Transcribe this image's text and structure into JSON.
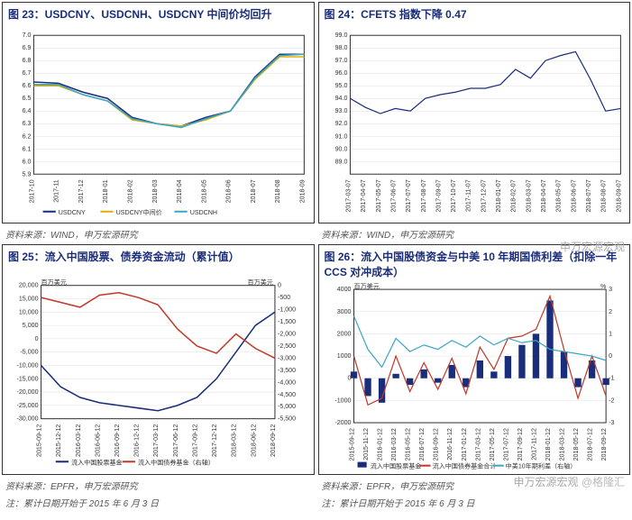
{
  "row1": {
    "left": {
      "title": "图 23：USDCNY、USDCNH、USDCNY 中间价均回升",
      "source": "资料来源：WIND，申万宏源研究",
      "chart": {
        "type": "line",
        "ylim": [
          5.9,
          7.0
        ],
        "yticks": [
          5.9,
          6.0,
          6.1,
          6.2,
          6.3,
          6.4,
          6.5,
          6.6,
          6.7,
          6.8,
          6.9,
          7.0
        ],
        "xticks": [
          "2017-10",
          "2017-11",
          "2017-12",
          "2018-01",
          "2018-02",
          "2018-03",
          "2018-04",
          "2018-05",
          "2018-06",
          "2018-07",
          "2018-08",
          "2018-09"
        ],
        "series": [
          {
            "name": "USDCNY",
            "color": "#1a2d7a",
            "data": [
              6.63,
              6.62,
              6.55,
              6.5,
              6.35,
              6.3,
              6.28,
              6.35,
              6.4,
              6.67,
              6.85,
              6.85
            ]
          },
          {
            "name": "USDCNY中间价",
            "color": "#e0b000",
            "data": [
              6.6,
              6.6,
              6.53,
              6.48,
              6.33,
              6.3,
              6.28,
              6.33,
              6.4,
              6.65,
              6.83,
              6.83
            ]
          },
          {
            "name": "USDCNH",
            "color": "#3aa6c4",
            "data": [
              6.61,
              6.61,
              6.53,
              6.48,
              6.34,
              6.3,
              6.27,
              6.34,
              6.4,
              6.66,
              6.84,
              6.85
            ]
          }
        ],
        "grid_color": "#e0e0e0",
        "line_width": 1.5
      }
    },
    "right": {
      "title": "图 24：CFETS 指数下降 0.47",
      "source": "资料来源：WIND，申万宏源研究",
      "chart": {
        "type": "line",
        "ylim": [
          88.0,
          99.0
        ],
        "yticks": [
          89.0,
          90.0,
          91.0,
          92.0,
          93.0,
          94.0,
          95.0,
          96.0,
          97.0,
          98.0,
          99.0
        ],
        "xticks": [
          "2017-03-07",
          "2017-04-07",
          "2017-05-07",
          "2017-06-07",
          "2017-07-07",
          "2017-08-07",
          "2017-09-07",
          "2017-10-07",
          "2017-11-07",
          "2017-12-07",
          "2018-01-07",
          "2018-02-07",
          "2018-03-07",
          "2018-04-07",
          "2018-05-07",
          "2018-06-07",
          "2018-07-07",
          "2018-08-07",
          "2018-09-07"
        ],
        "series": [
          {
            "name": "CFETS",
            "color": "#1a2d7a",
            "data": [
              94.0,
              93.3,
              92.8,
              93.2,
              93.0,
              94.0,
              94.3,
              94.5,
              94.8,
              94.8,
              95.1,
              96.3,
              95.6,
              97.0,
              97.4,
              97.7,
              95.5,
              93.0,
              93.2
            ]
          }
        ],
        "grid_color": "#e0e0e0",
        "line_width": 1.2
      }
    }
  },
  "row2": {
    "left": {
      "title": "图 25：流入中国股票、债券资金流动（累计值）",
      "source": "资料来源：EPFR，申万宏源研究",
      "note": "注：累计日期开始于 2015 年 6 月 3 日",
      "chart": {
        "type": "dual-line",
        "ylim_l": [
          -30000,
          20000
        ],
        "yticks_l": [
          -30000,
          -25000,
          -20000,
          -15000,
          -10000,
          -5000,
          0,
          5000,
          10000,
          15000,
          20000
        ],
        "ylim_r": [
          -5500,
          0
        ],
        "yticks_r": [
          -5500,
          -5000,
          -4500,
          -4000,
          -3500,
          -3000,
          -2500,
          -2000,
          -1500,
          -1000,
          -500,
          0
        ],
        "ylabel_l": "百万美元",
        "ylabel_r": "百万美元",
        "xticks": [
          "2015-09-12",
          "2015-12-12",
          "2016-03-12",
          "2016-06-12",
          "2016-09-12",
          "2016-12-12",
          "2017-03-12",
          "2017-06-12",
          "2017-09-12",
          "2017-12-12",
          "2018-03-12",
          "2018-06-12",
          "2018-09-12"
        ],
        "series": [
          {
            "name": "流入中国股票基金",
            "color": "#1a2d7a",
            "axis": "left",
            "data": [
              -10000,
              -18000,
              -22000,
              -24000,
              -25000,
              -26000,
              -27000,
              -25000,
              -22000,
              -15000,
              -5000,
              5000,
              10000
            ]
          },
          {
            "name": "流入中国债券基金（右轴）",
            "color": "#c0392b",
            "axis": "right",
            "data": [
              -500,
              -700,
              -900,
              -400,
              -300,
              -500,
              -800,
              -1800,
              -2500,
              -2800,
              -2000,
              -2600,
              -3000
            ]
          }
        ],
        "grid_color": "#e0e0e0",
        "line_width": 1.5
      }
    },
    "right": {
      "title": "图 26：流入中国股债资金与中美 10 年期国债利差（扣除一年 CCS 对冲成本）",
      "source": "资料来源：EPFR，申万宏源研究",
      "note": "注：累计日期开始于 2015 年 6 月 3 日",
      "chart": {
        "type": "bar-dual-line",
        "ylim_l": [
          -2000,
          4000
        ],
        "yticks_l": [
          -2000,
          -1000,
          0,
          1000,
          2000,
          3000,
          4000
        ],
        "ylim_r": [
          -3,
          3
        ],
        "yticks_r": [
          -3,
          -2,
          -1,
          0,
          1,
          2,
          3
        ],
        "ylabel_l": "百万美元",
        "ylabel_r": "%",
        "xticks": [
          "2015-09-12",
          "2015-11-12",
          "2016-01-12",
          "2016-03-12",
          "2016-05-12",
          "2016-07-12",
          "2016-09-12",
          "2016-11-12",
          "2017-01-12",
          "2017-03-12",
          "2017-05-12",
          "2017-07-12",
          "2017-09-12",
          "2017-11-12",
          "2018-01-12",
          "2018-03-12",
          "2018-05-12",
          "2018-07-12",
          "2018-09-12"
        ],
        "bar_series": {
          "name": "流入中国股票基金",
          "color": "#1a2d7a",
          "data": [
            300,
            -800,
            -1100,
            200,
            -300,
            400,
            -200,
            600,
            -400,
            800,
            300,
            1000,
            1500,
            2000,
            3500,
            1200,
            -400,
            800,
            -300
          ]
        },
        "line_series": [
          {
            "name": "流入中国债券基金合计",
            "color": "#c0392b",
            "axis": "left",
            "data": [
              1000,
              -1200,
              -900,
              1000,
              -600,
              700,
              -500,
              900,
              -700,
              1400,
              400,
              1800,
              1900,
              2200,
              3700,
              1300,
              -900,
              1000,
              -800
            ]
          },
          {
            "name": "中美10年期利差（右轴）",
            "color": "#3aa6c4",
            "axis": "right",
            "data": [
              1.8,
              0.3,
              -0.5,
              0.8,
              0.2,
              0.5,
              0.3,
              0.7,
              0.4,
              0.9,
              0.5,
              0.8,
              0.6,
              0.7,
              0.3,
              0.2,
              0.1,
              0.0,
              -0.2
            ]
          }
        ],
        "grid_color": "#e0e0e0",
        "line_width": 1.2
      }
    }
  },
  "watermarks": {
    "text1": "申万宏源宏观",
    "text2": "@格隆汇"
  }
}
